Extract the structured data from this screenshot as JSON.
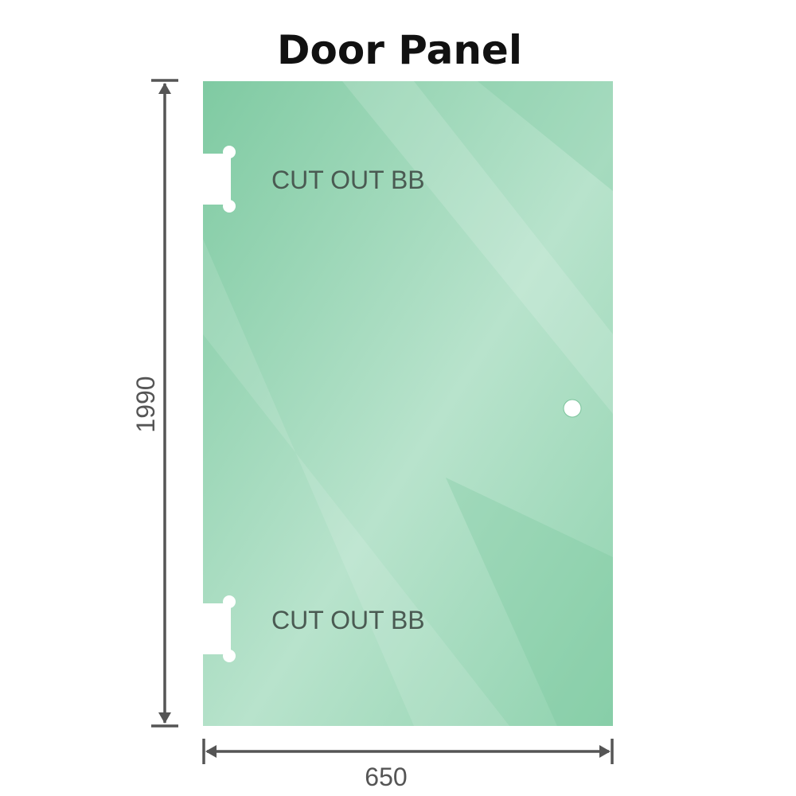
{
  "title": "Door Panel",
  "panel": {
    "color": "#8fd0ad",
    "cutouts": [
      {
        "label": "CUT OUT BB"
      },
      {
        "label": "CUT OUT BB"
      }
    ]
  },
  "dimensions": {
    "height": "1990",
    "width": "650",
    "line_color": "#555555"
  }
}
